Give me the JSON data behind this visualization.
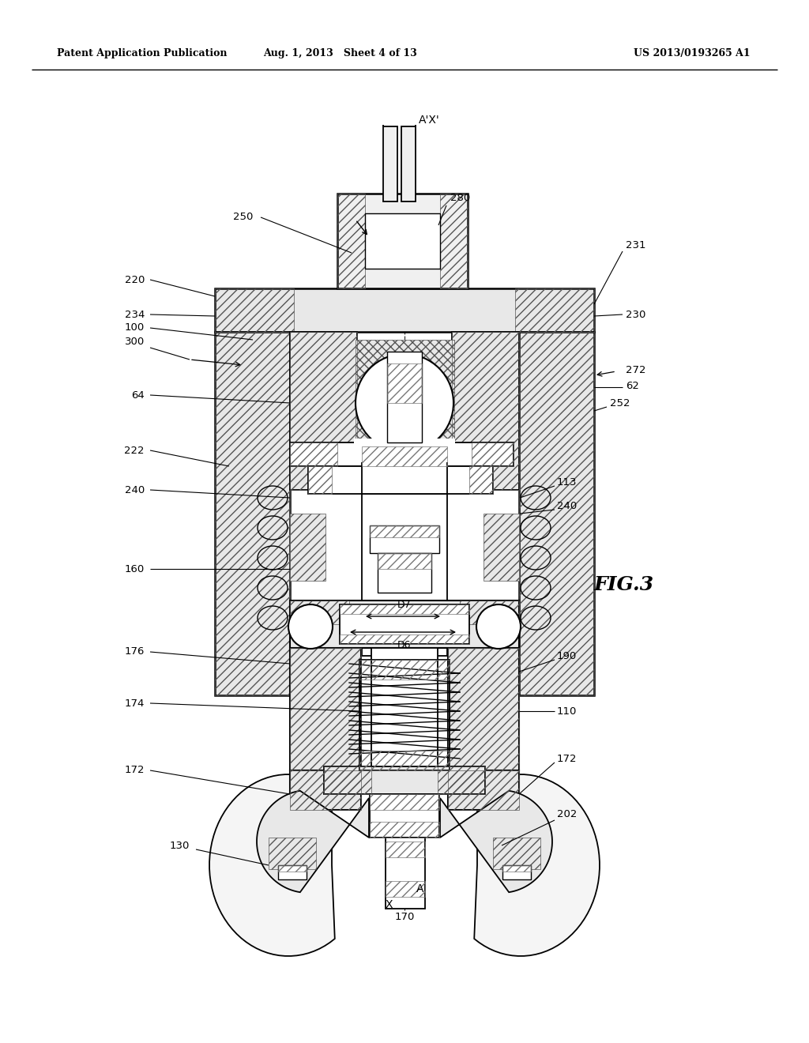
{
  "bg_color": "#ffffff",
  "header_left": "Patent Application Publication",
  "header_center": "Aug. 1, 2013   Sheet 4 of 13",
  "header_right": "US 2013/0193265 A1",
  "fig_label": "FIG.3",
  "line_color": "#000000",
  "hatch_color": "#444444",
  "light_gray": "#c8c8c8",
  "mid_gray": "#888888"
}
